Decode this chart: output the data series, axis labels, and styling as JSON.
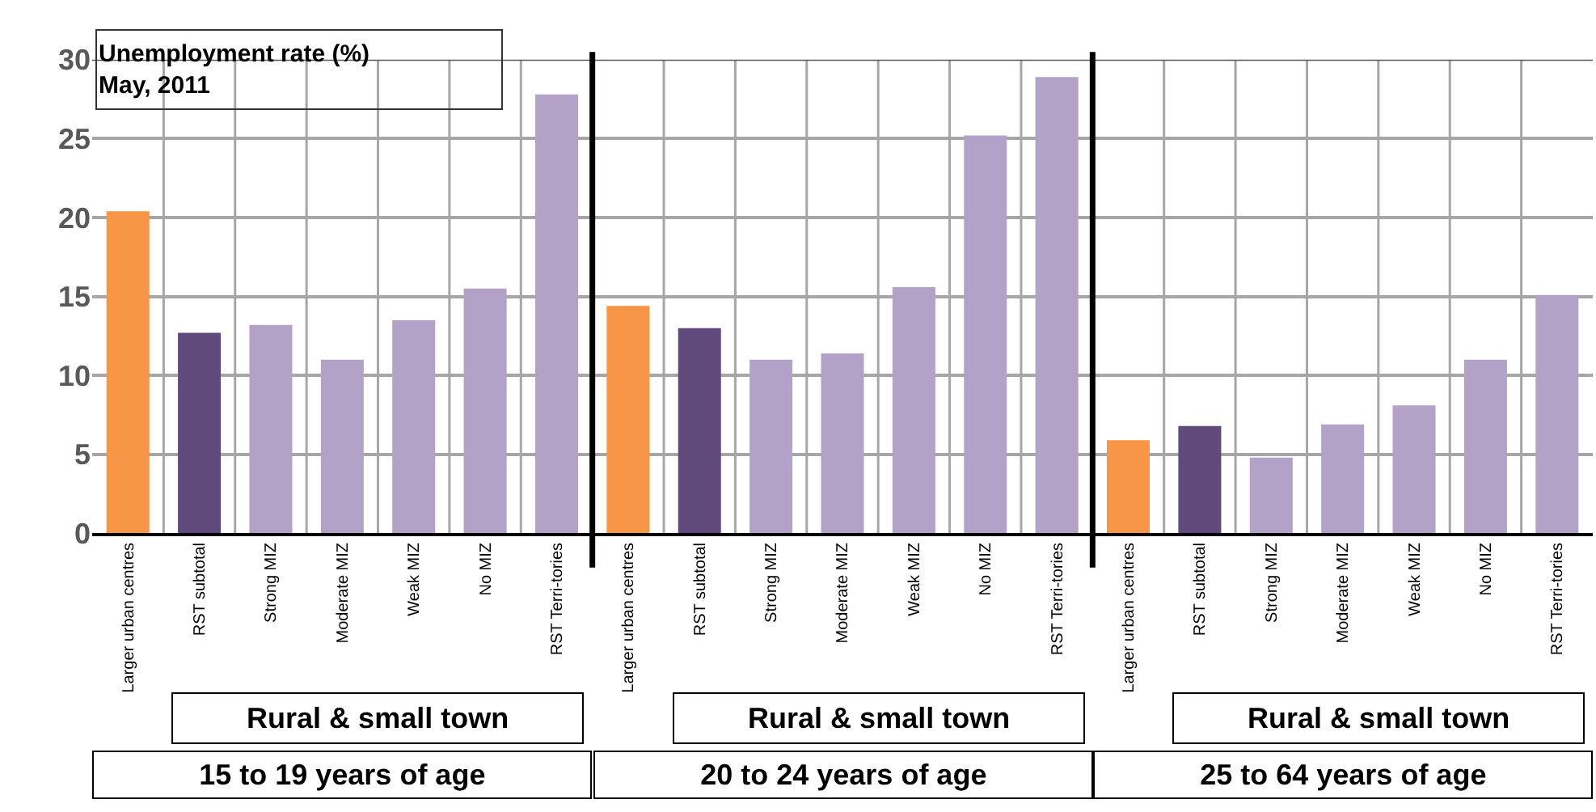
{
  "chart_data": [
    {
      "type": "bar",
      "title": "Unemployment rate (%)\nMay, 2011",
      "categories": [
        "Larger urban centres",
        "RST subtotal",
        "Strong MIZ",
        "Moderate MIZ",
        "Weak MIZ",
        "No MIZ",
        "RST Terri-tories"
      ],
      "values": [
        20.4,
        12.7,
        13.2,
        11.0,
        13.5,
        15.5,
        27.8
      ],
      "colors": [
        "#f79646",
        "#604a7b",
        "#b3a2c7",
        "#b3a2c7",
        "#b3a2c7",
        "#b3a2c7",
        "#b3a2c7"
      ],
      "ylim": [
        0,
        30
      ],
      "yticks": [
        0,
        5,
        10,
        15,
        20,
        25,
        30
      ],
      "grid": true,
      "annotations": [
        "Rural & small town",
        "15 to 19 years of age"
      ]
    },
    {
      "type": "bar",
      "categories": [
        "Larger urban centres",
        "RST subtotal",
        "Strong MIZ",
        "Moderate MIZ",
        "Weak MIZ",
        "No MIZ",
        "RST Terri-tories"
      ],
      "values": [
        14.4,
        13.0,
        11.0,
        11.4,
        15.6,
        25.2,
        28.9
      ],
      "colors": [
        "#f79646",
        "#604a7b",
        "#b3a2c7",
        "#b3a2c7",
        "#b3a2c7",
        "#b3a2c7",
        "#b3a2c7"
      ],
      "ylim": [
        0,
        30
      ],
      "yticks": [
        0,
        5,
        10,
        15,
        20,
        25,
        30
      ],
      "grid": true,
      "tick_labels": "x",
      "annotations": [
        "Rural & small town",
        "20 to 24 years of age"
      ]
    },
    {
      "type": "bar",
      "categories": [
        "Larger urban centres",
        "RST subtotal",
        "Strong MIZ",
        "Moderate MIZ",
        "Weak MIZ",
        "No MIZ",
        "RST Terri-tories"
      ],
      "values": [
        5.9,
        6.8,
        4.8,
        6.9,
        8.1,
        11.0,
        15.1
      ],
      "colors": [
        "#f79646",
        "#604a7b",
        "#b3a2c7",
        "#b3a2c7",
        "#b3a2c7",
        "#b3a2c7",
        "#b3a2c7"
      ],
      "ylim": [
        0,
        30
      ],
      "yticks": [
        0,
        5,
        10,
        15,
        20,
        25,
        30
      ],
      "grid": true,
      "tick_labels": "x",
      "annotations": [
        "Rural & small town",
        "25 to 64 years of age"
      ]
    }
  ]
}
